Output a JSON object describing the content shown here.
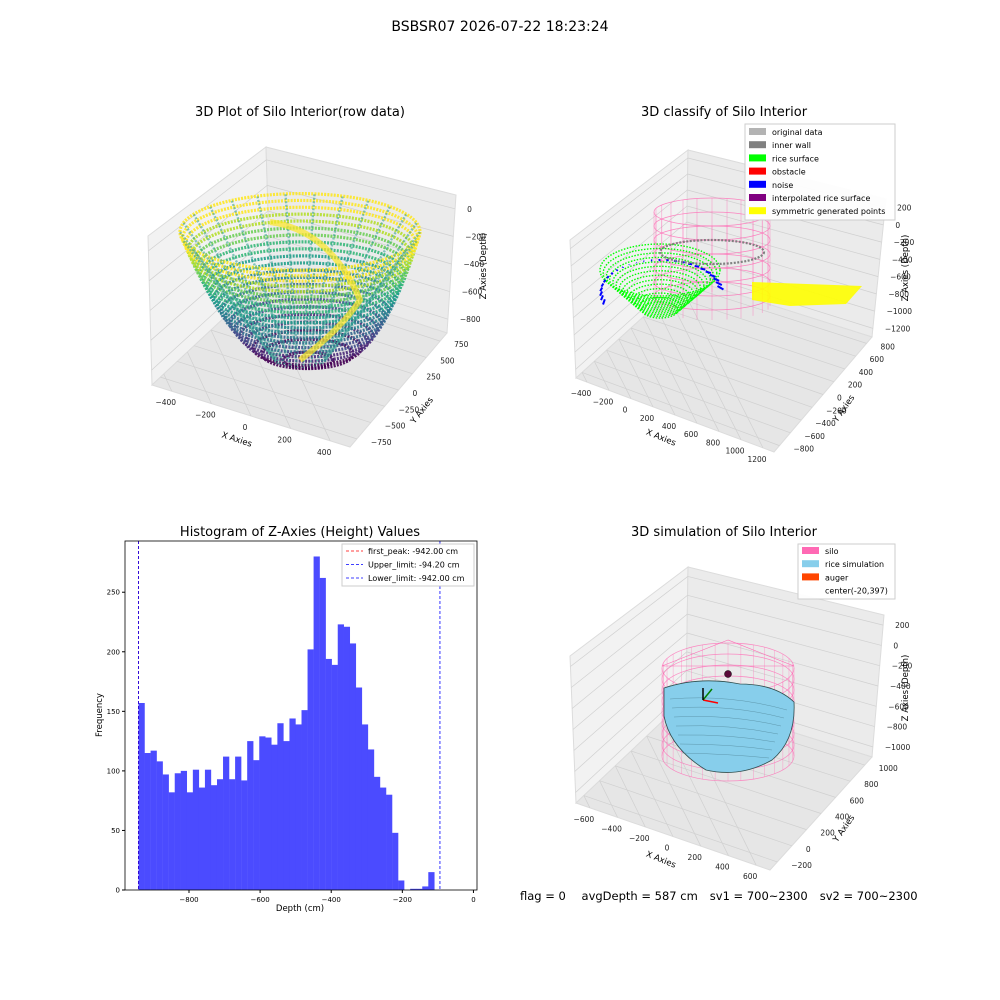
{
  "suptitle": "BSBSR07 2026-07-22 18:23:24",
  "panels": {
    "raw": {
      "title": "3D Plot of Silo Interior(row data)",
      "xlabel": "X Axies",
      "ylabel": "Y Axies",
      "zlabel": "Z Axies (Depth)",
      "xticks": [
        "−400",
        "−200",
        "0",
        "200",
        "400"
      ],
      "yticks": [
        "−750",
        "−500",
        "−250",
        "0",
        "250",
        "500",
        "750"
      ],
      "zticks": [
        "0",
        "−200",
        "−400",
        "−600",
        "−800"
      ]
    },
    "classify": {
      "title": "3D classify of Silo Interior",
      "xlabel": "X Axies",
      "ylabel": "Y Axies",
      "zlabel": "Z Axies (Depth)",
      "xticks": [
        "−400",
        "−200",
        "0",
        "200",
        "400",
        "600",
        "800",
        "1000",
        "1200"
      ],
      "yticks": [
        "−800",
        "−600",
        "−400",
        "−200",
        "0",
        "200",
        "400",
        "600",
        "800"
      ],
      "zticks": [
        "200",
        "0",
        "−200",
        "−400",
        "−600",
        "−800",
        "−1000",
        "−1200"
      ],
      "legend": [
        {
          "label": "original data",
          "color": "#b3b3b3"
        },
        {
          "label": "inner wall",
          "color": "#808080"
        },
        {
          "label": "rice surface",
          "color": "#00ff00"
        },
        {
          "label": "obstacle",
          "color": "#ff0000"
        },
        {
          "label": "noise",
          "color": "#0000ff"
        },
        {
          "label": "interpolated rice surface",
          "color": "#800080"
        },
        {
          "label": "symmetric generated points",
          "color": "#ffff00"
        }
      ]
    },
    "simulation": {
      "title": "3D simulation of Silo Interior",
      "xlabel": "X Axies",
      "ylabel": "Y Axies",
      "zlabel": "Z Axies (Depth)",
      "xticks": [
        "−600",
        "−400",
        "−200",
        "0",
        "200",
        "400",
        "600"
      ],
      "yticks": [
        "−200",
        "0",
        "200",
        "400",
        "600",
        "800",
        "1000"
      ],
      "zticks": [
        "200",
        "0",
        "−200",
        "−400",
        "−600",
        "−800",
        "−1000"
      ],
      "legend": [
        {
          "label": "silo",
          "color": "#ff69b4"
        },
        {
          "label": "rice simulation",
          "color": "#87ceeb"
        },
        {
          "label": "auger",
          "color": "#ff4500"
        },
        {
          "label": "center(-20,397)",
          "color": "none"
        }
      ]
    }
  },
  "chart_data": {
    "type": "bar",
    "title": "Histogram of Z-Axies (Height) Values",
    "xlabel": "Depth (cm)",
    "ylabel": "Frequency",
    "xlim": [
      -980,
      10
    ],
    "ylim": [
      0,
      293
    ],
    "xticks": [
      -800,
      -600,
      -400,
      -200,
      0
    ],
    "yticks": [
      0,
      50,
      100,
      150,
      200,
      250
    ],
    "bar_color": "#4b4bff",
    "bins": {
      "start": -942,
      "width": 16.98,
      "count": 57
    },
    "values": [
      157,
      115,
      117,
      108,
      97,
      82,
      98,
      100,
      82,
      101,
      86,
      101,
      88,
      93,
      112,
      93,
      112,
      92,
      125,
      109,
      129,
      128,
      122,
      140,
      125,
      144,
      139,
      151,
      202,
      280,
      262,
      194,
      189,
      223,
      221,
      207,
      170,
      139,
      118,
      95,
      86,
      80,
      48,
      8,
      0,
      1,
      1,
      3,
      15,
      0,
      0,
      0,
      0,
      0,
      0,
      0,
      0
    ],
    "vlines": [
      {
        "label": "first_peak: -942.00 cm",
        "x": -942,
        "color": "#ff0000"
      },
      {
        "label": "Upper_limit: -94.20 cm",
        "x": -94.2,
        "color": "#0000ff"
      },
      {
        "label": "Lower_limit: -942.00 cm",
        "x": -942,
        "color": "#0000ff"
      }
    ]
  },
  "footer": {
    "flag": "flag = 0",
    "avg": "avgDepth = 587 cm",
    "sv1": "sv1 = 700~2300",
    "sv2": "sv2 = 700~2300"
  }
}
